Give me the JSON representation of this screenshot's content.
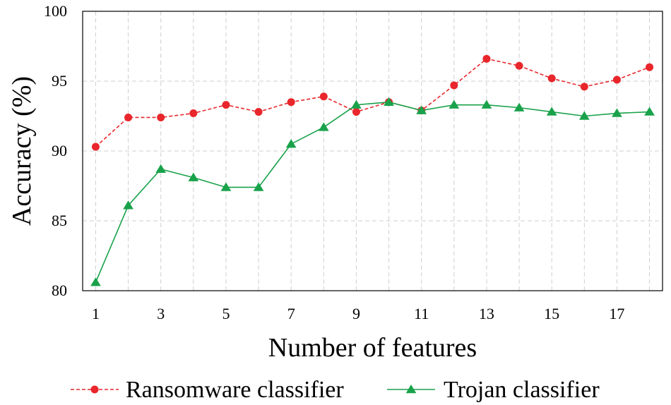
{
  "chart_data": {
    "type": "line",
    "title": "",
    "xlabel": "Number of features",
    "ylabel": "Accuracy (%)",
    "xlim": [
      0.6,
      18.4
    ],
    "ylim": [
      80,
      100
    ],
    "x_ticks": [
      1,
      3,
      5,
      7,
      9,
      11,
      13,
      15,
      17
    ],
    "y_ticks": [
      80,
      85,
      90,
      95,
      100
    ],
    "grid": true,
    "legend_position": "bottom",
    "x": [
      1,
      2,
      3,
      4,
      5,
      6,
      7,
      8,
      9,
      10,
      11,
      12,
      13,
      14,
      15,
      16,
      17,
      18
    ],
    "series": [
      {
        "name": "Ransomware classifier",
        "color": "#e8262b",
        "line_style": "dashed",
        "marker": "circle",
        "values": [
          90.3,
          92.4,
          92.4,
          92.7,
          93.3,
          92.8,
          93.5,
          93.9,
          92.8,
          93.5,
          92.9,
          94.7,
          96.6,
          96.1,
          95.2,
          94.6,
          95.1,
          96.0
        ]
      },
      {
        "name": "Trojan classifier",
        "color": "#19a24a",
        "line_style": "solid",
        "marker": "triangle",
        "values": [
          80.6,
          86.1,
          88.7,
          88.1,
          87.4,
          87.4,
          90.5,
          91.7,
          93.3,
          93.5,
          92.9,
          93.3,
          93.3,
          93.1,
          92.8,
          92.5,
          92.7,
          92.8
        ]
      }
    ]
  }
}
